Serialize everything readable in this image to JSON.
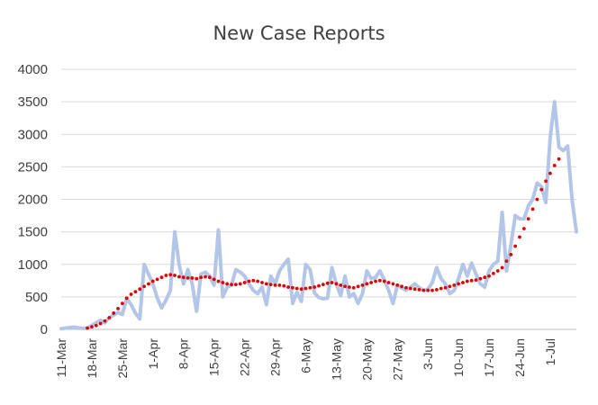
{
  "chart_data": {
    "type": "line",
    "title": "New Case Reports",
    "xlabel": "",
    "ylabel": "",
    "ylim": [
      0,
      4000
    ],
    "yticks": [
      "0",
      "500",
      "1000",
      "1500",
      "2000",
      "2500",
      "3000",
      "3500",
      "4000"
    ],
    "grid": true,
    "legend": "none",
    "x_start": "11-Mar",
    "xtick_labels": [
      "11-Mar",
      "18-Mar",
      "25-Mar",
      "1-Apr",
      "8-Apr",
      "15-Apr",
      "22-Apr",
      "29-Apr",
      "6-May",
      "13-May",
      "20-May",
      "27-May",
      "3-Jun",
      "10-Jun",
      "17-Jun",
      "24-Jun",
      "1-Jul"
    ],
    "colors": {
      "series": "#b4c6e7",
      "trend": "#e00000",
      "grid": "#d9d9d9",
      "axis": "#bfbfbf",
      "text": "#404040"
    },
    "series": [
      {
        "style": "solid",
        "values": [
          10,
          20,
          30,
          35,
          25,
          15,
          20,
          60,
          100,
          140,
          100,
          180,
          220,
          260,
          230,
          480,
          380,
          250,
          160,
          1000,
          850,
          700,
          480,
          330,
          450,
          600,
          1500,
          1000,
          700,
          920,
          700,
          280,
          850,
          880,
          820,
          680,
          1530,
          500,
          650,
          680,
          920,
          880,
          820,
          700,
          600,
          550,
          650,
          380,
          820,
          700,
          900,
          1000,
          1080,
          400,
          570,
          430,
          1000,
          920,
          560,
          490,
          470,
          480,
          950,
          700,
          520,
          820,
          500,
          550,
          400,
          550,
          900,
          780,
          800,
          900,
          760,
          600,
          400,
          680,
          640,
          600,
          650,
          700,
          640,
          600,
          620,
          720,
          950,
          780,
          700,
          550,
          600,
          780,
          1000,
          820,
          1020,
          850,
          700,
          650,
          900,
          1000,
          1050,
          1800,
          900,
          1300,
          1750,
          1700,
          1700,
          1900,
          2000,
          2250,
          2200,
          1950,
          2950,
          3500,
          2800,
          2750,
          2820,
          2000,
          1500
        ]
      },
      {
        "style": "dotted",
        "x_offset": 6,
        "values": [
          20,
          40,
          60,
          90,
          130,
          180,
          250,
          320,
          400,
          480,
          540,
          580,
          620,
          660,
          700,
          740,
          770,
          800,
          830,
          840,
          830,
          810,
          800,
          790,
          790,
          780,
          800,
          810,
          800,
          770,
          740,
          720,
          700,
          690,
          690,
          700,
          720,
          740,
          750,
          740,
          720,
          700,
          690,
          680,
          680,
          670,
          650,
          640,
          630,
          620,
          630,
          640,
          650,
          670,
          690,
          710,
          720,
          700,
          680,
          660,
          650,
          640,
          660,
          680,
          700,
          720,
          740,
          750,
          740,
          720,
          700,
          680,
          660,
          640,
          630,
          620,
          610,
          600,
          600,
          600,
          610,
          630,
          640,
          660,
          680,
          700,
          720,
          740,
          750,
          760,
          780,
          800,
          820,
          860,
          900,
          950,
          1050,
          1150,
          1280,
          1420,
          1550,
          1700,
          1850,
          2000,
          2150,
          2280,
          2400,
          2520,
          2620
        ]
      }
    ]
  }
}
